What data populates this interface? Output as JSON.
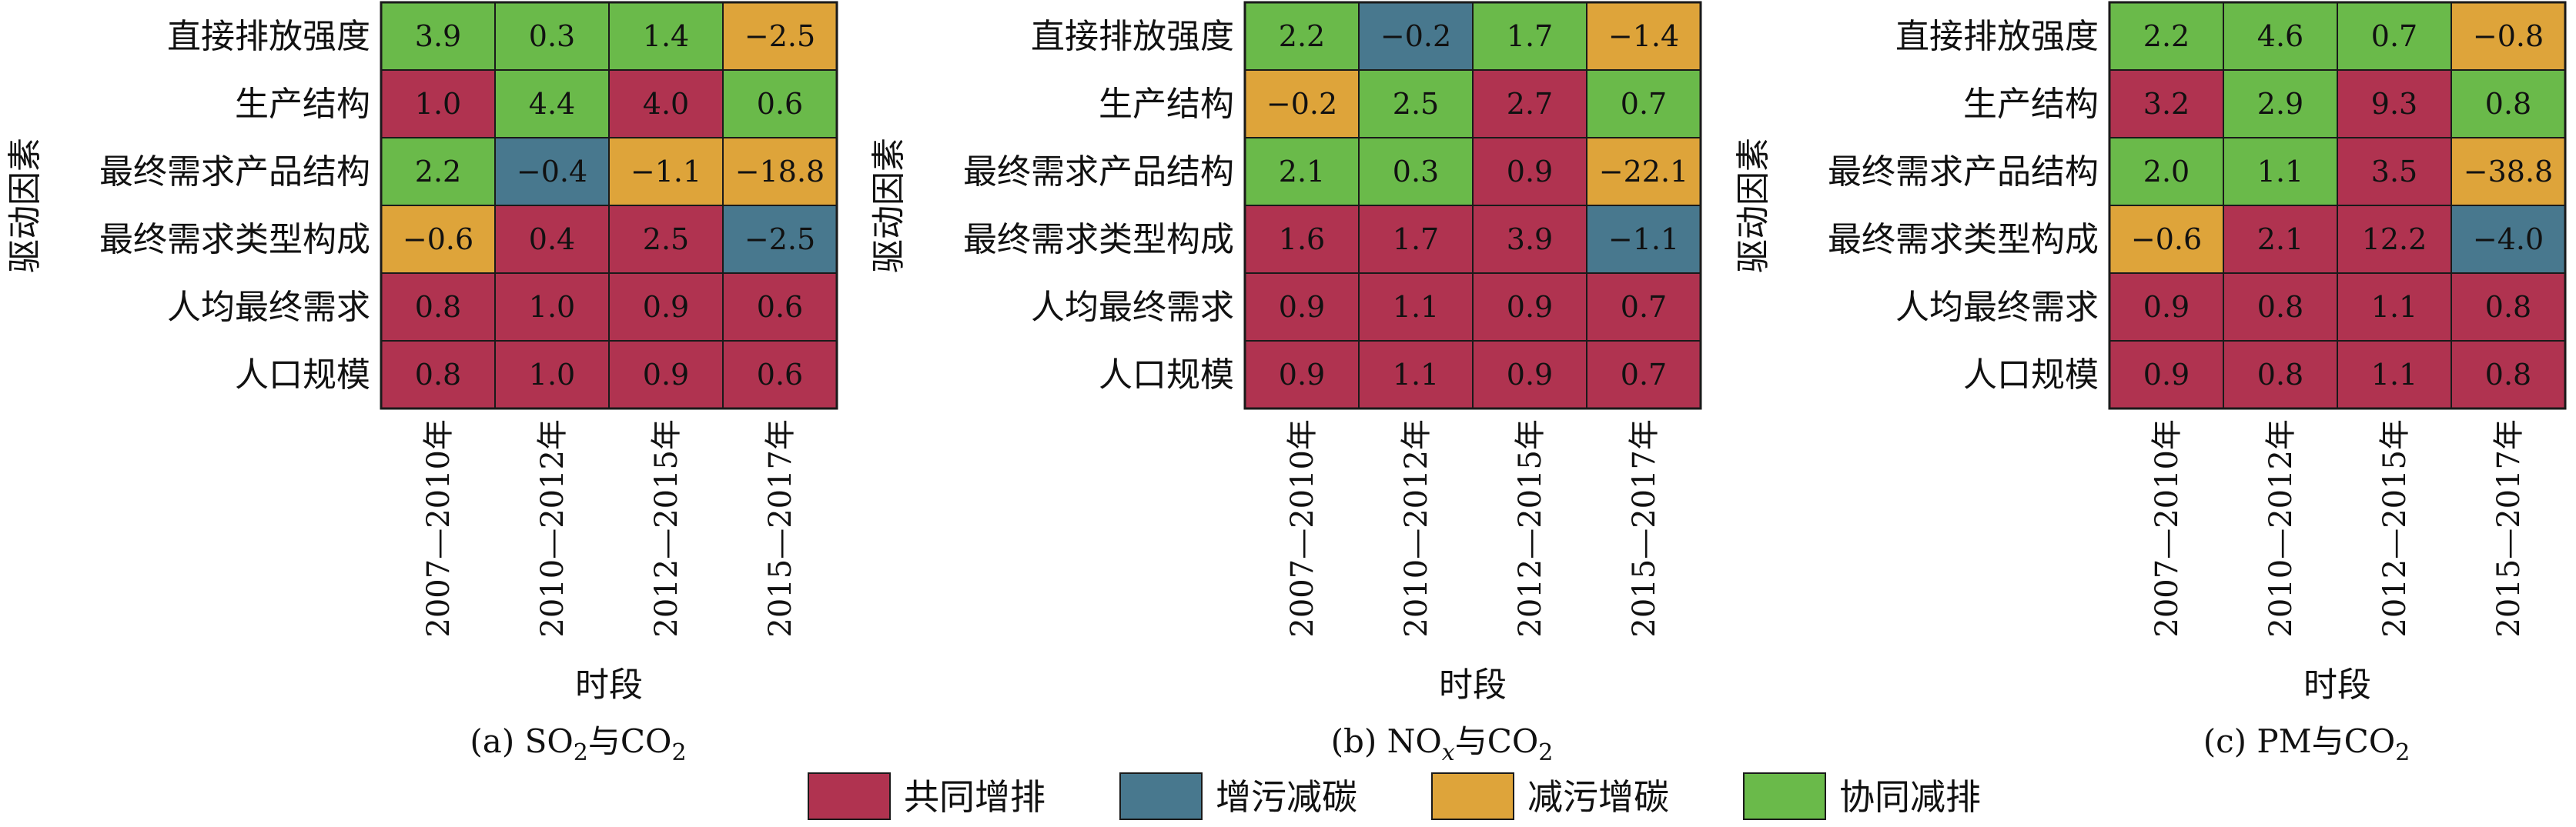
{
  "colors": {
    "共同增排": "#b03350",
    "增污减碳": "#48788e",
    "减污增碳": "#dea43a",
    "协同减排": "#6aba4a"
  },
  "chart_data": [
    {
      "type": "heatmap",
      "caption": {
        "prefix": "(a) SO",
        "sub": "2",
        "suffix": "与CO",
        "sub2": "2"
      },
      "xlabel": "时段",
      "ylabel": "驱动因素",
      "x": [
        "2007—2010年",
        "2010—2012年",
        "2012—2015年",
        "2015—2017年"
      ],
      "y": [
        "直接排放强度",
        "生产结构",
        "最终需求产品结构",
        "最终需求类型构成",
        "人均最终需求",
        "人口规模"
      ],
      "values": [
        [
          "3.9",
          "0.3",
          "1.4",
          "−2.5"
        ],
        [
          "1.0",
          "4.4",
          "4.0",
          "0.6"
        ],
        [
          "2.2",
          "−0.4",
          "−1.1",
          "−18.8"
        ],
        [
          "−0.6",
          "0.4",
          "2.5",
          "−2.5"
        ],
        [
          "0.8",
          "1.0",
          "0.9",
          "0.6"
        ],
        [
          "0.8",
          "1.0",
          "0.9",
          "0.6"
        ]
      ],
      "categories": [
        [
          "协同减排",
          "协同减排",
          "协同减排",
          "减污增碳"
        ],
        [
          "共同增排",
          "协同减排",
          "共同增排",
          "协同减排"
        ],
        [
          "协同减排",
          "增污减碳",
          "减污增碳",
          "减污增碳"
        ],
        [
          "减污增碳",
          "共同增排",
          "共同增排",
          "增污减碳"
        ],
        [
          "共同增排",
          "共同增排",
          "共同增排",
          "共同增排"
        ],
        [
          "共同增排",
          "共同增排",
          "共同增排",
          "共同增排"
        ]
      ]
    },
    {
      "type": "heatmap",
      "caption": {
        "prefix": "(b) NO",
        "sub": "x",
        "suffix": "与CO",
        "sub2": "2"
      },
      "xlabel": "时段",
      "ylabel": "驱动因素",
      "x": [
        "2007—2010年",
        "2010—2012年",
        "2012—2015年",
        "2015—2017年"
      ],
      "y": [
        "直接排放强度",
        "生产结构",
        "最终需求产品结构",
        "最终需求类型构成",
        "人均最终需求",
        "人口规模"
      ],
      "values": [
        [
          "2.2",
          "−0.2",
          "1.7",
          "−1.4"
        ],
        [
          "−0.2",
          "2.5",
          "2.7",
          "0.7"
        ],
        [
          "2.1",
          "0.3",
          "0.9",
          "−22.1"
        ],
        [
          "1.6",
          "1.7",
          "3.9",
          "−1.1"
        ],
        [
          "0.9",
          "1.1",
          "0.9",
          "0.7"
        ],
        [
          "0.9",
          "1.1",
          "0.9",
          "0.7"
        ]
      ],
      "categories": [
        [
          "协同减排",
          "增污减碳",
          "协同减排",
          "减污增碳"
        ],
        [
          "减污增碳",
          "协同减排",
          "共同增排",
          "协同减排"
        ],
        [
          "协同减排",
          "协同减排",
          "共同增排",
          "减污增碳"
        ],
        [
          "共同增排",
          "共同增排",
          "共同增排",
          "增污减碳"
        ],
        [
          "共同增排",
          "共同增排",
          "共同增排",
          "共同增排"
        ],
        [
          "共同增排",
          "共同增排",
          "共同增排",
          "共同增排"
        ]
      ]
    },
    {
      "type": "heatmap",
      "caption": {
        "prefix": "(c) PM",
        "sub": "",
        "suffix": "与CO",
        "sub2": "2"
      },
      "xlabel": "时段",
      "ylabel": "驱动因素",
      "x": [
        "2007—2010年",
        "2010—2012年",
        "2012—2015年",
        "2015—2017年"
      ],
      "y": [
        "直接排放强度",
        "生产结构",
        "最终需求产品结构",
        "最终需求类型构成",
        "人均最终需求",
        "人口规模"
      ],
      "values": [
        [
          "2.2",
          "4.6",
          "0.7",
          "−0.8"
        ],
        [
          "3.2",
          "2.9",
          "9.3",
          "0.8"
        ],
        [
          "2.0",
          "1.1",
          "3.5",
          "−38.8"
        ],
        [
          "−0.6",
          "2.1",
          "12.2",
          "−4.0"
        ],
        [
          "0.9",
          "0.8",
          "1.1",
          "0.8"
        ],
        [
          "0.9",
          "0.8",
          "1.1",
          "0.8"
        ]
      ],
      "categories": [
        [
          "协同减排",
          "协同减排",
          "协同减排",
          "减污增碳"
        ],
        [
          "共同增排",
          "协同减排",
          "共同增排",
          "协同减排"
        ],
        [
          "协同减排",
          "协同减排",
          "共同增排",
          "减污增碳"
        ],
        [
          "减污增碳",
          "共同增排",
          "共同增排",
          "增污减碳"
        ],
        [
          "共同增排",
          "共同增排",
          "共同增排",
          "共同增排"
        ],
        [
          "共同增排",
          "共同增排",
          "共同增排",
          "共同增排"
        ]
      ]
    }
  ],
  "legend": {
    "placement": "bottom",
    "items": [
      "共同增排",
      "增污减碳",
      "减污增碳",
      "协同减排"
    ]
  }
}
